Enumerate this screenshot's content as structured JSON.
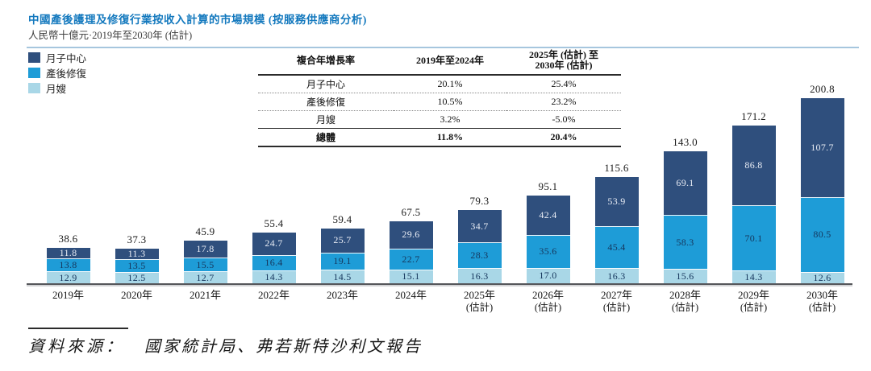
{
  "header": {
    "title": "中國產後護理及修復行業按收入計算的市場規模 (按服務供應商分析)",
    "subtitle": "人民幣十億元·2019年至2030年 (估計)"
  },
  "legend": {
    "items": [
      {
        "label": "月子中心",
        "color": "#2F4F7D"
      },
      {
        "label": "產後修復",
        "color": "#1E9CD7"
      },
      {
        "label": "月嫂",
        "color": "#A9D7E7"
      }
    ]
  },
  "cagr_table": {
    "col_headers": {
      "metric": "複合年增長率",
      "period1": "2019年至2024年",
      "period2_line1": "2025年 (估計) 至",
      "period2_line2": "2030年 (估計)"
    },
    "rows": [
      {
        "label": "月子中心",
        "p1": "20.1%",
        "p2": "25.4%"
      },
      {
        "label": "產後修復",
        "p1": "10.5%",
        "p2": "23.2%"
      },
      {
        "label": "月嫂",
        "p1": "3.2%",
        "p2": "-5.0%"
      }
    ],
    "total_row": {
      "label": "總體",
      "p1": "11.8%",
      "p2": "20.4%"
    }
  },
  "chart_data": {
    "type": "bar",
    "stacked": true,
    "unit": "人民幣十億元",
    "categories": [
      "2019年",
      "2020年",
      "2021年",
      "2022年",
      "2023年",
      "2024年",
      "2025年",
      "2026年",
      "2027年",
      "2028年",
      "2029年",
      "2030年"
    ],
    "category_notes": [
      "",
      "",
      "",
      "",
      "",
      "",
      "(估計)",
      "(估計)",
      "(估計)",
      "(估計)",
      "(估計)",
      "(估計)"
    ],
    "series": [
      {
        "name": "月子中心",
        "color": "#2F4F7D",
        "label_color": "#E9EDF5",
        "values": [
          11.8,
          11.3,
          17.8,
          24.7,
          25.7,
          29.6,
          34.7,
          42.4,
          53.9,
          69.1,
          86.8,
          107.7
        ]
      },
      {
        "name": "產後修復",
        "color": "#1E9CD7",
        "label_color": "#16365C",
        "values": [
          13.8,
          13.5,
          15.5,
          16.4,
          19.1,
          22.7,
          28.3,
          35.6,
          45.4,
          58.3,
          70.1,
          80.5
        ]
      },
      {
        "name": "月嫂",
        "color": "#A9D7E7",
        "label_color": "#16365C",
        "values": [
          12.9,
          12.5,
          12.7,
          14.3,
          14.5,
          15.1,
          16.3,
          17.0,
          16.3,
          15.6,
          14.3,
          12.6
        ]
      }
    ],
    "totals": [
      38.6,
      37.3,
      45.9,
      55.4,
      59.4,
      67.5,
      79.3,
      95.1,
      115.6,
      143.0,
      171.2,
      200.8
    ],
    "ylim": [
      0,
      210
    ],
    "legend_position": "top-left",
    "grid": false
  },
  "source": {
    "label": "資料來源：",
    "text": "國家統計局、弗若斯特沙利文報告"
  }
}
